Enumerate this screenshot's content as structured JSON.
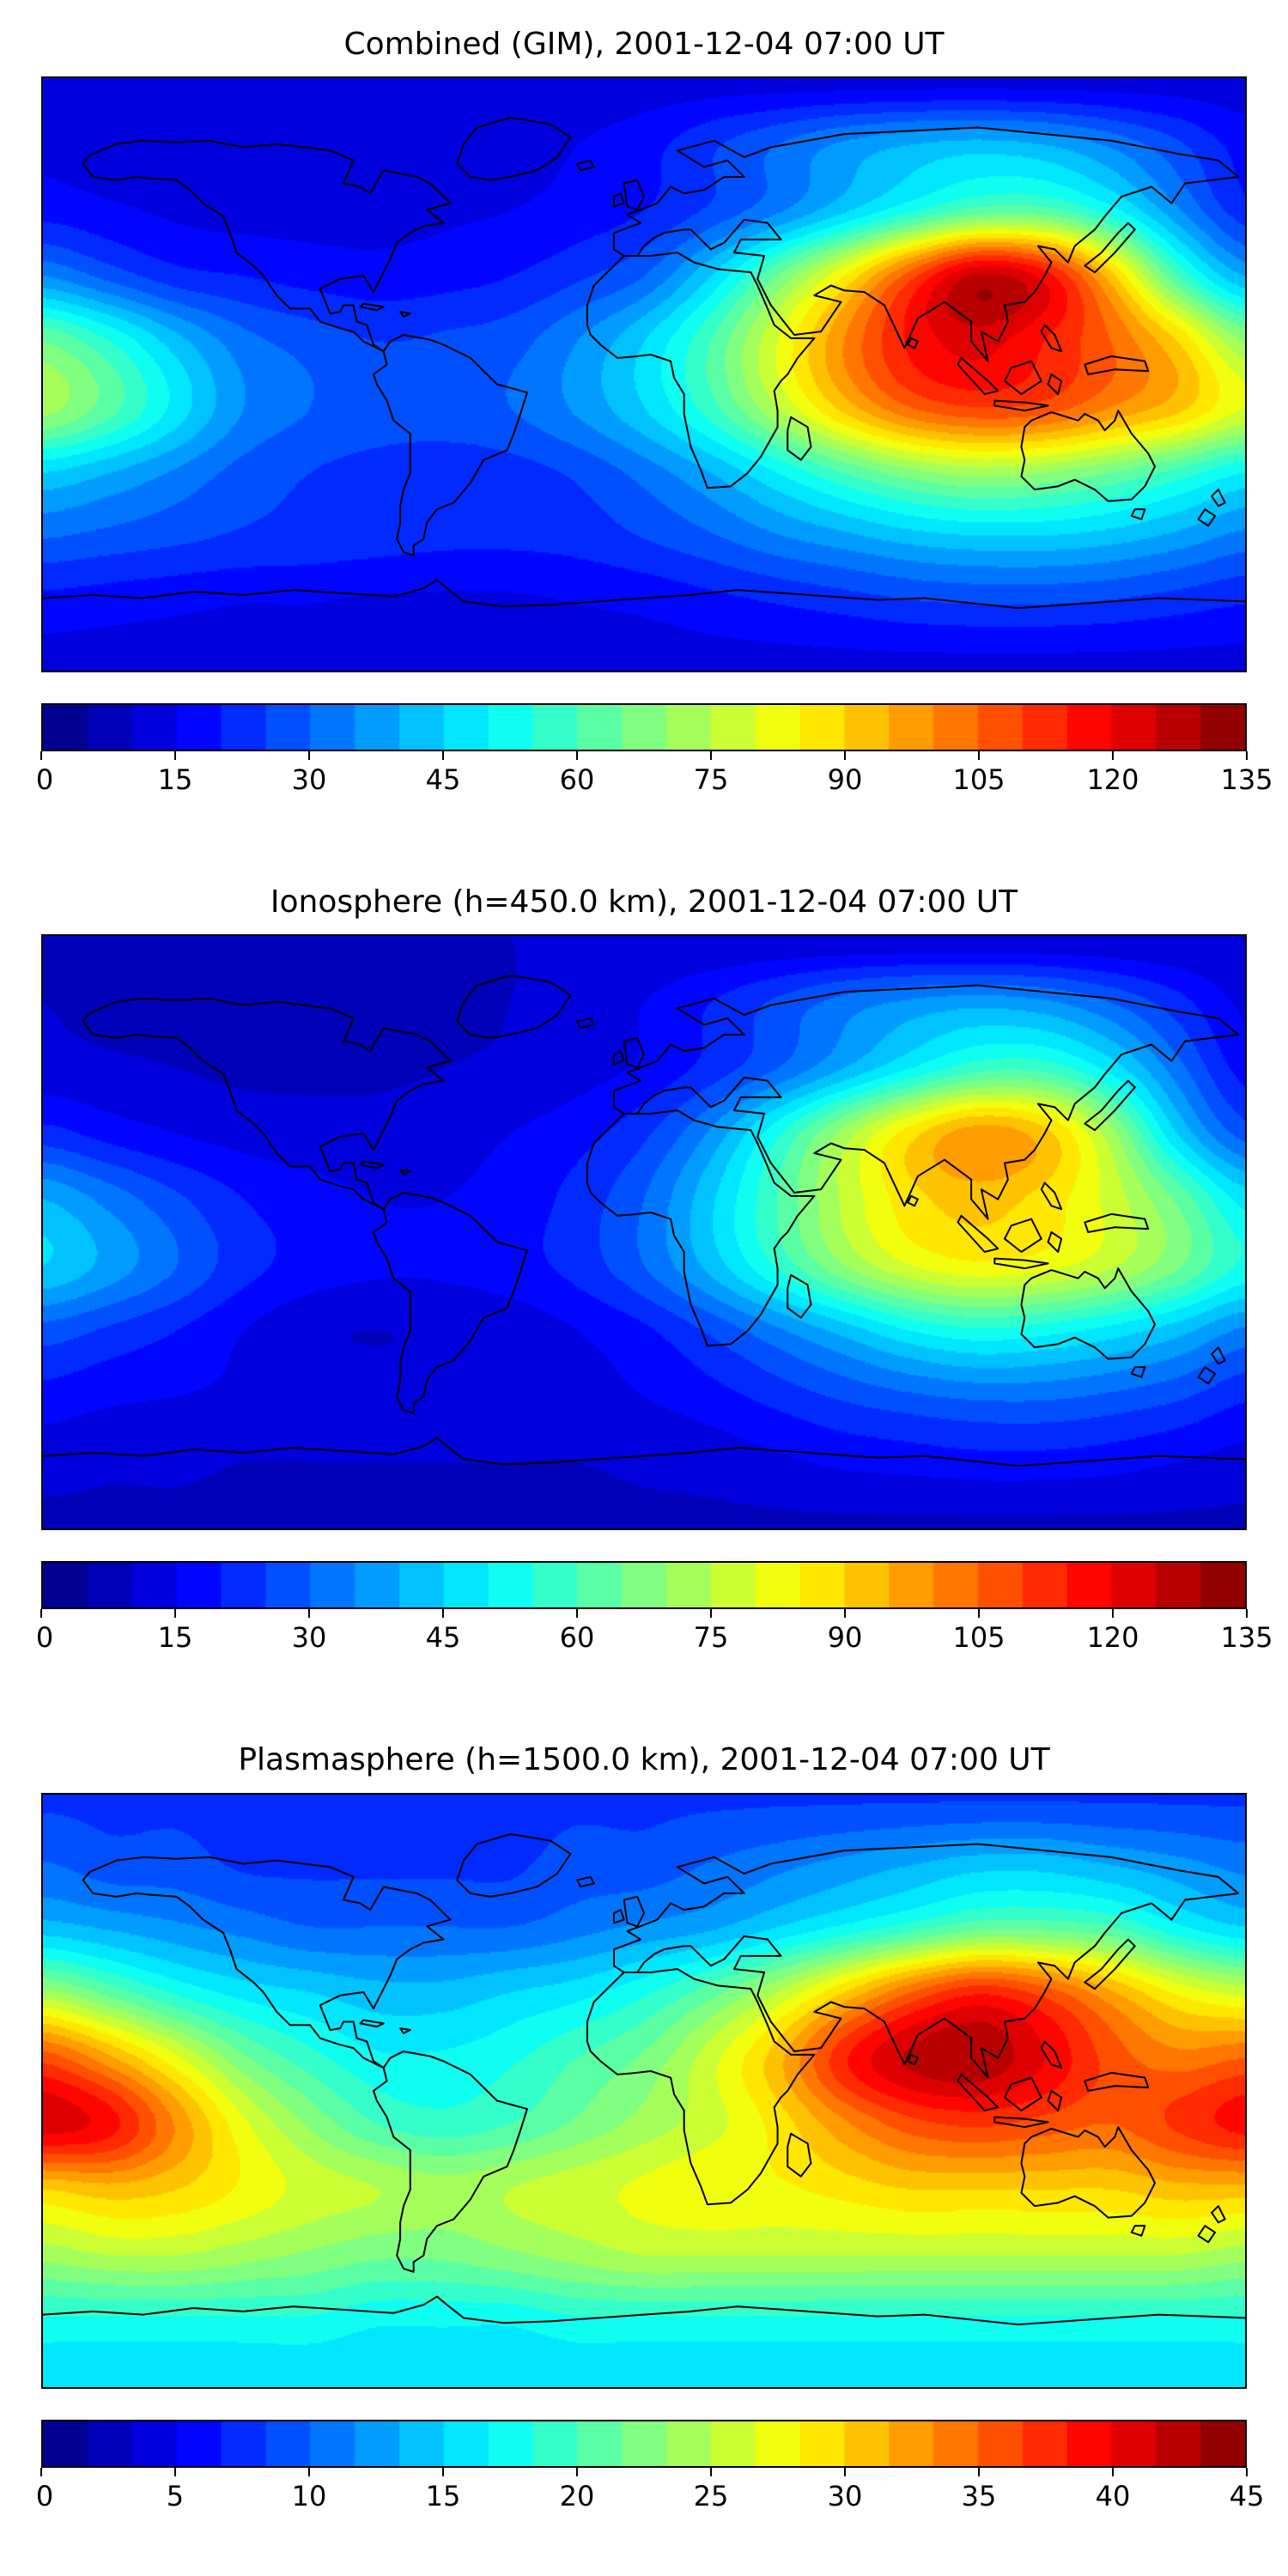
{
  "figure": {
    "background": "#ffffff",
    "colormap": "jet"
  },
  "chart_data": [
    {
      "type": "heatmap",
      "title": "Combined (GIM), 2001-12-04 07:00 UT",
      "colormap": "jet",
      "vmin": 0,
      "vmax": 135,
      "n_levels": 27,
      "colorbar_ticks": [
        "0",
        "15",
        "30",
        "45",
        "60",
        "75",
        "90",
        "105",
        "120",
        "135"
      ],
      "lons": [
        -180,
        -160,
        -140,
        -120,
        -100,
        -80,
        -60,
        -40,
        -20,
        0,
        20,
        40,
        60,
        80,
        100,
        120,
        140,
        160,
        180
      ],
      "lats": [
        90,
        70,
        50,
        30,
        10,
        -10,
        -30,
        -50,
        -70,
        -90
      ],
      "grid": [
        [
          12,
          12,
          12,
          12,
          12,
          12,
          12,
          12,
          12,
          12,
          12,
          12,
          12,
          12,
          12,
          12,
          12,
          12,
          12
        ],
        [
          14,
          13,
          12,
          11,
          11,
          11,
          12,
          13,
          15,
          18,
          24,
          30,
          36,
          40,
          42,
          40,
          34,
          26,
          18
        ],
        [
          18,
          16,
          14,
          13,
          13,
          13,
          14,
          15,
          17,
          20,
          26,
          34,
          44,
          54,
          62,
          62,
          52,
          36,
          22
        ],
        [
          35,
          28,
          22,
          20,
          18,
          17,
          18,
          20,
          24,
          30,
          45,
          65,
          85,
          108,
          126,
          118,
          92,
          60,
          40
        ],
        [
          65,
          55,
          42,
          32,
          28,
          25,
          26,
          28,
          35,
          45,
          60,
          80,
          100,
          116,
          122,
          115,
          105,
          90,
          70
        ],
        [
          72,
          62,
          48,
          35,
          30,
          28,
          28,
          30,
          36,
          45,
          58,
          75,
          92,
          105,
          110,
          108,
          100,
          92,
          80
        ],
        [
          45,
          40,
          34,
          28,
          25,
          23,
          22,
          23,
          26,
          32,
          40,
          50,
          60,
          68,
          72,
          70,
          65,
          58,
          50
        ],
        [
          30,
          28,
          26,
          24,
          23,
          22,
          21,
          21,
          22,
          25,
          29,
          34,
          38,
          42,
          44,
          44,
          42,
          38,
          33
        ],
        [
          18,
          17,
          16,
          15,
          15,
          14,
          14,
          14,
          15,
          16,
          18,
          20,
          22,
          24,
          25,
          25,
          24,
          22,
          20
        ],
        [
          13,
          13,
          13,
          13,
          13,
          13,
          13,
          13,
          13,
          13,
          13,
          13,
          13,
          13,
          13,
          13,
          13,
          13,
          13
        ]
      ]
    },
    {
      "type": "heatmap",
      "title": "Ionosphere  (h=450.0 km), 2001-12-04 07:00 UT",
      "colormap": "jet",
      "vmin": 0,
      "vmax": 135,
      "n_levels": 27,
      "colorbar_ticks": [
        "0",
        "15",
        "30",
        "45",
        "60",
        "75",
        "90",
        "105",
        "120",
        "135"
      ],
      "lons": [
        -180,
        -160,
        -140,
        -120,
        -100,
        -80,
        -60,
        -40,
        -20,
        0,
        20,
        40,
        60,
        80,
        100,
        120,
        140,
        160,
        180
      ],
      "lats": [
        90,
        70,
        50,
        30,
        10,
        -10,
        -30,
        -50,
        -70,
        -90
      ],
      "grid": [
        [
          10,
          10,
          10,
          10,
          10,
          10,
          10,
          10,
          10,
          10,
          10,
          10,
          10,
          10,
          10,
          10,
          10,
          10,
          10
        ],
        [
          10,
          9,
          9,
          8,
          8,
          8,
          9,
          10,
          12,
          15,
          20,
          26,
          32,
          36,
          38,
          36,
          30,
          22,
          14
        ],
        [
          12,
          11,
          10,
          9,
          9,
          9,
          10,
          11,
          13,
          16,
          22,
          30,
          40,
          50,
          58,
          58,
          48,
          32,
          18
        ],
        [
          22,
          18,
          15,
          13,
          12,
          12,
          13,
          15,
          18,
          24,
          36,
          54,
          72,
          88,
          98,
          92,
          72,
          45,
          28
        ],
        [
          40,
          33,
          26,
          20,
          17,
          15,
          15,
          17,
          22,
          30,
          44,
          60,
          76,
          88,
          92,
          88,
          78,
          64,
          48
        ],
        [
          45,
          38,
          30,
          22,
          18,
          16,
          16,
          18,
          22,
          30,
          42,
          56,
          70,
          80,
          84,
          82,
          76,
          66,
          54
        ],
        [
          28,
          24,
          20,
          15,
          11,
          10,
          11,
          12,
          15,
          19,
          26,
          34,
          42,
          50,
          54,
          52,
          48,
          42,
          34
        ],
        [
          18,
          16,
          15,
          14,
          13,
          12,
          12,
          12,
          13,
          15,
          18,
          22,
          26,
          29,
          31,
          31,
          29,
          26,
          21
        ],
        [
          12,
          11,
          11,
          10,
          10,
          10,
          10,
          10,
          10,
          11,
          12,
          14,
          16,
          17,
          18,
          18,
          17,
          15,
          13
        ],
        [
          9,
          9,
          9,
          9,
          9,
          9,
          9,
          9,
          9,
          9,
          9,
          9,
          9,
          9,
          9,
          9,
          9,
          9,
          9
        ]
      ]
    },
    {
      "type": "heatmap",
      "title": "Plasmasphere (h=1500.0 km), 2001-12-04 07:00 UT",
      "colormap": "jet",
      "vmin": 0,
      "vmax": 45,
      "n_levels": 27,
      "colorbar_ticks": [
        "0",
        "5",
        "10",
        "15",
        "20",
        "25",
        "30",
        "35",
        "40",
        "45"
      ],
      "lons": [
        -180,
        -160,
        -140,
        -120,
        -100,
        -80,
        -60,
        -40,
        -20,
        0,
        20,
        40,
        60,
        80,
        100,
        120,
        140,
        160,
        180
      ],
      "lats": [
        90,
        70,
        50,
        30,
        10,
        -10,
        -30,
        -50,
        -70,
        -90
      ],
      "grid": [
        [
          8,
          8,
          8,
          8,
          8,
          8,
          8,
          8,
          8,
          8,
          8,
          8,
          8,
          8,
          8,
          8,
          8,
          8,
          8
        ],
        [
          10,
          9,
          9,
          8,
          8,
          8,
          8,
          8,
          9,
          9,
          10,
          11,
          12,
          13,
          14,
          14,
          13,
          12,
          11
        ],
        [
          14,
          13,
          12,
          11,
          10,
          10,
          10,
          10,
          11,
          12,
          13,
          15,
          17,
          19,
          21,
          21,
          20,
          17,
          15
        ],
        [
          24,
          21,
          18,
          16,
          15,
          14,
          14,
          15,
          16,
          18,
          21,
          25,
          30,
          35,
          38,
          36,
          32,
          28,
          26
        ],
        [
          36,
          32,
          27,
          22,
          19,
          17,
          17,
          18,
          20,
          22,
          26,
          31,
          38,
          42,
          43,
          40,
          36,
          34,
          35
        ],
        [
          41,
          39,
          33,
          27,
          23,
          20,
          19,
          20,
          22,
          24,
          26,
          29,
          33,
          36,
          37,
          36,
          35,
          37,
          39
        ],
        [
          30,
          31,
          30,
          28,
          26,
          25,
          24,
          25,
          26,
          27,
          28,
          28,
          29,
          30,
          30,
          30,
          30,
          31,
          31
        ],
        [
          24,
          25,
          25,
          24,
          23,
          22,
          22,
          23,
          24,
          25,
          25,
          25,
          25,
          25,
          25,
          25,
          25,
          25,
          24
        ],
        [
          18,
          18,
          18,
          18,
          18,
          17,
          17,
          17,
          18,
          18,
          18,
          18,
          18,
          18,
          18,
          18,
          18,
          18,
          18
        ],
        [
          15,
          15,
          15,
          15,
          15,
          15,
          15,
          15,
          15,
          15,
          15,
          15,
          15,
          15,
          15,
          15,
          15,
          15,
          15
        ]
      ]
    }
  ]
}
